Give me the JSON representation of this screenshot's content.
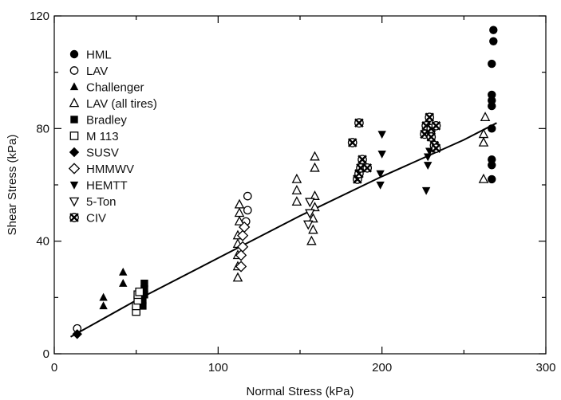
{
  "chart_data": {
    "type": "scatter",
    "xlabel": "Normal Stress (kPa)",
    "ylabel": "Shear Stress (kPa)",
    "xlim": [
      0,
      300
    ],
    "ylim": [
      0,
      120
    ],
    "xticks": [
      0,
      100,
      200,
      300
    ],
    "yticks": [
      0,
      40,
      80,
      120
    ],
    "grid": false,
    "legend_position": "top-left",
    "series": [
      {
        "name": "HML",
        "marker": "circle-filled",
        "points": [
          [
            267,
            62
          ],
          [
            267,
            67
          ],
          [
            267,
            69
          ],
          [
            267,
            80
          ],
          [
            267,
            88
          ],
          [
            267,
            90
          ],
          [
            267,
            92
          ],
          [
            267,
            103
          ],
          [
            268,
            111
          ],
          [
            268,
            115
          ]
        ]
      },
      {
        "name": "LAV",
        "marker": "circle-open",
        "points": [
          [
            14,
            9
          ],
          [
            117,
            47
          ],
          [
            118,
            51
          ],
          [
            118,
            56
          ]
        ]
      },
      {
        "name": "Challenger",
        "marker": "triangle-filled",
        "points": [
          [
            30,
            17
          ],
          [
            30,
            20
          ],
          [
            42,
            25
          ],
          [
            42,
            29
          ]
        ]
      },
      {
        "name": "LAV (all tires)",
        "marker": "triangle-open",
        "points": [
          [
            112,
            27
          ],
          [
            112,
            31
          ],
          [
            112,
            35
          ],
          [
            112,
            39
          ],
          [
            112,
            42
          ],
          [
            113,
            47
          ],
          [
            113,
            50
          ],
          [
            113,
            53
          ],
          [
            148,
            54
          ],
          [
            148,
            58
          ],
          [
            148,
            62
          ],
          [
            157,
            40
          ],
          [
            158,
            44
          ],
          [
            158,
            48
          ],
          [
            159,
            52
          ],
          [
            159,
            56
          ],
          [
            159,
            66
          ],
          [
            159,
            70
          ],
          [
            262,
            62
          ],
          [
            262,
            75
          ],
          [
            262,
            78
          ],
          [
            263,
            84
          ]
        ]
      },
      {
        "name": "Bradley",
        "marker": "square-filled",
        "points": [
          [
            54,
            17
          ],
          [
            54,
            19
          ],
          [
            55,
            21
          ],
          [
            55,
            23
          ],
          [
            55,
            25
          ]
        ]
      },
      {
        "name": "M 113",
        "marker": "square-open",
        "points": [
          [
            50,
            15
          ],
          [
            50,
            17
          ],
          [
            51,
            19
          ],
          [
            51,
            21
          ],
          [
            52,
            22
          ]
        ]
      },
      {
        "name": "SUSV",
        "marker": "diamond-filled",
        "points": [
          [
            14,
            7
          ]
        ]
      },
      {
        "name": "HMMWV",
        "marker": "diamond-open",
        "points": [
          [
            114,
            31
          ],
          [
            114,
            35
          ],
          [
            115,
            38
          ],
          [
            115,
            42
          ],
          [
            116,
            45
          ]
        ]
      },
      {
        "name": "HEMTT",
        "marker": "triangle-down-filled",
        "points": [
          [
            199,
            60
          ],
          [
            199,
            64
          ],
          [
            200,
            71
          ],
          [
            200,
            78
          ],
          [
            227,
            58
          ],
          [
            228,
            67
          ],
          [
            228,
            70
          ],
          [
            229,
            72
          ],
          [
            229,
            78
          ],
          [
            230,
            79
          ]
        ]
      },
      {
        "name": "5-Ton",
        "marker": "triangle-down-open",
        "points": [
          [
            155,
            46
          ],
          [
            156,
            50
          ],
          [
            156,
            54
          ]
        ]
      },
      {
        "name": "CIV",
        "marker": "cross-circle",
        "points": [
          [
            185,
            62
          ],
          [
            186,
            64
          ],
          [
            187,
            66
          ],
          [
            188,
            69
          ],
          [
            191,
            66
          ],
          [
            182,
            75
          ],
          [
            186,
            82
          ],
          [
            226,
            78
          ],
          [
            227,
            81
          ],
          [
            229,
            84
          ],
          [
            230,
            77
          ],
          [
            230,
            80
          ],
          [
            232,
            74
          ],
          [
            233,
            73
          ],
          [
            233,
            81
          ]
        ]
      }
    ],
    "fit_curve": {
      "name": "",
      "points": [
        [
          10,
          6
        ],
        [
          50,
          19
        ],
        [
          100,
          34
        ],
        [
          150,
          49
        ],
        [
          200,
          63
        ],
        [
          250,
          76
        ],
        [
          270,
          82
        ]
      ]
    }
  }
}
